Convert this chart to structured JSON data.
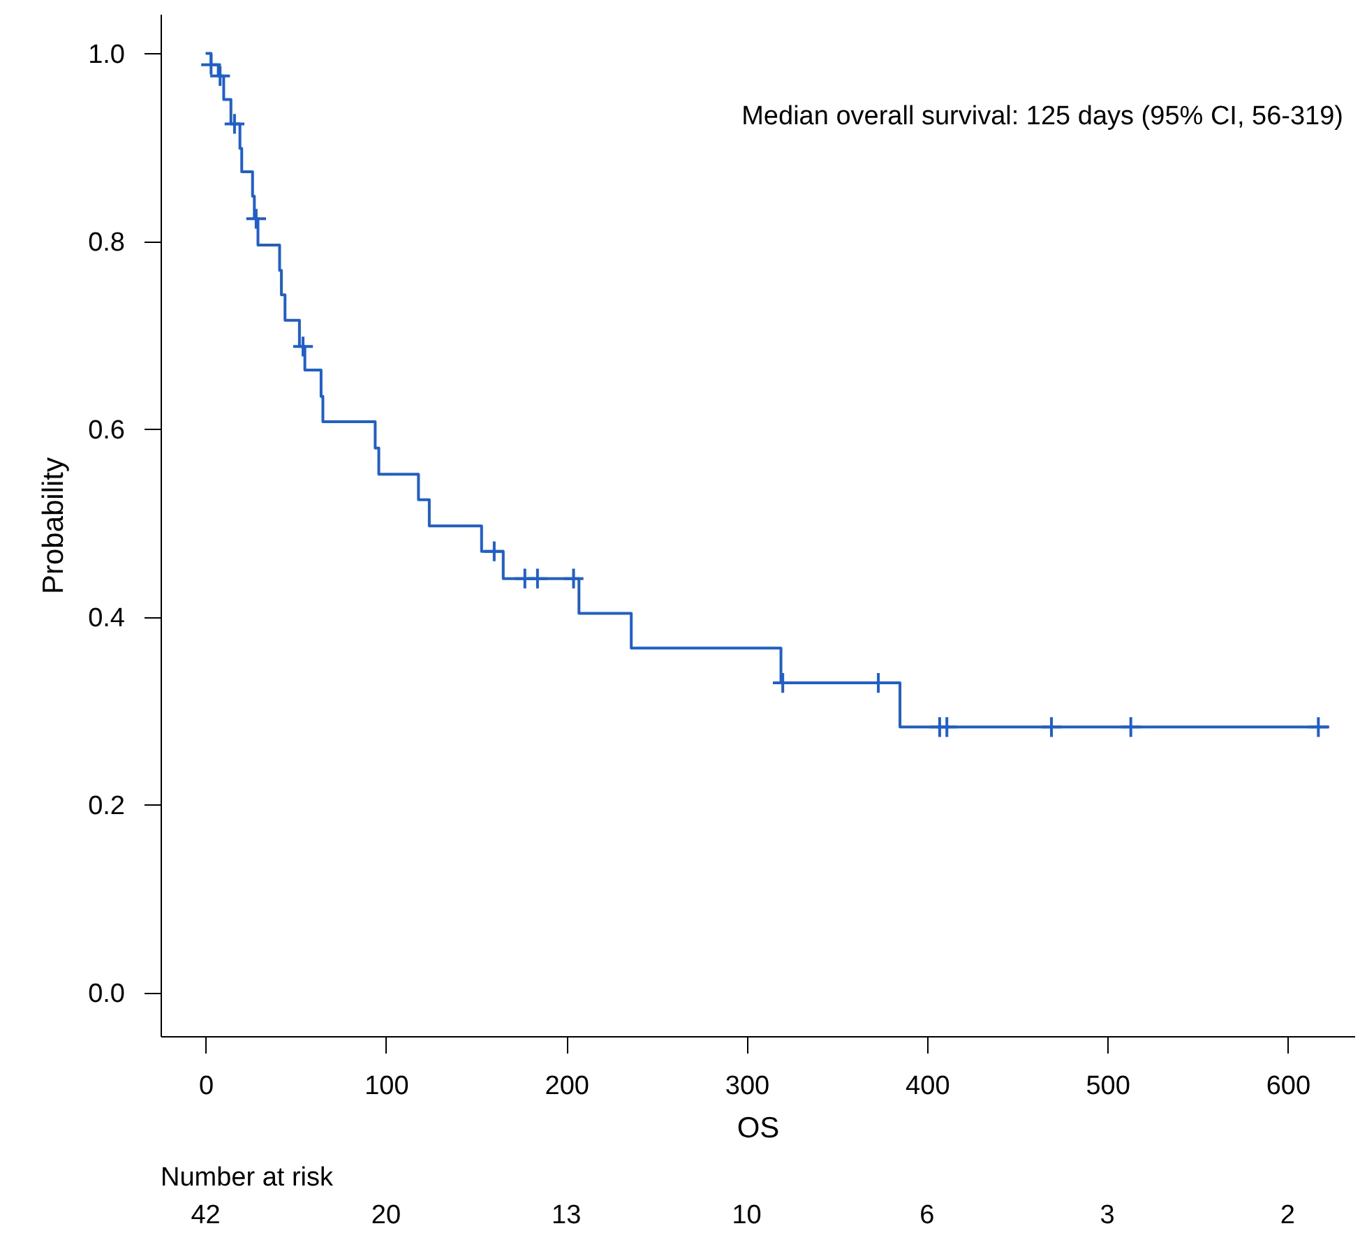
{
  "chart_data": {
    "type": "step",
    "xlabel": "OS",
    "ylabel": "Probability",
    "xlim": [
      -25,
      637
    ],
    "ylim": [
      -0.046,
      1.042
    ],
    "xticks": [
      0,
      100,
      200,
      300,
      400,
      500,
      600
    ],
    "yticks": [
      {
        "value": 0,
        "label": "0.0"
      },
      {
        "value": 0.2,
        "label": "0.2"
      },
      {
        "value": 0.4,
        "label": "0.4"
      },
      {
        "value": 0.6,
        "label": "0.6"
      },
      {
        "value": 0.8,
        "label": "0.8"
      },
      {
        "value": 1,
        "label": "1.0"
      }
    ],
    "grid": false,
    "series": [
      {
        "color": "#1f5fcc",
        "marker": "none",
        "x": [
          0,
          3,
          7,
          10,
          14,
          19,
          20,
          26,
          27,
          29,
          41,
          42,
          44,
          52,
          55,
          64,
          65,
          94,
          96,
          118,
          124,
          153,
          165,
          207,
          236,
          319,
          385,
          623
        ],
        "values": [
          1.0,
          0.988,
          0.976,
          0.951,
          0.925,
          0.899,
          0.874,
          0.848,
          0.824,
          0.796,
          0.769,
          0.743,
          0.716,
          0.688,
          0.663,
          0.635,
          0.608,
          0.58,
          0.552,
          0.525,
          0.497,
          0.47,
          0.441,
          0.404,
          0.367,
          0.33,
          0.283,
          0.283
        ]
      },
      {
        "type": "scatter",
        "color": "#1f5fcc",
        "marker": "cross",
        "x": [
          3,
          8,
          16,
          28,
          54,
          160,
          177,
          184,
          204,
          320,
          373,
          407,
          411,
          469,
          513,
          617
        ],
        "values": [
          0.988,
          0.976,
          0.925,
          0.824,
          0.688,
          0.47,
          0.441,
          0.441,
          0.441,
          0.33,
          0.33,
          0.283,
          0.283,
          0.283,
          0.283,
          0.283
        ]
      }
    ],
    "annotations": [
      "Median overall survival: 125 days (95% CI, 56-319)",
      "Number at risk",
      "42",
      "20",
      "13",
      "10",
      "6",
      "3",
      "2"
    ]
  }
}
